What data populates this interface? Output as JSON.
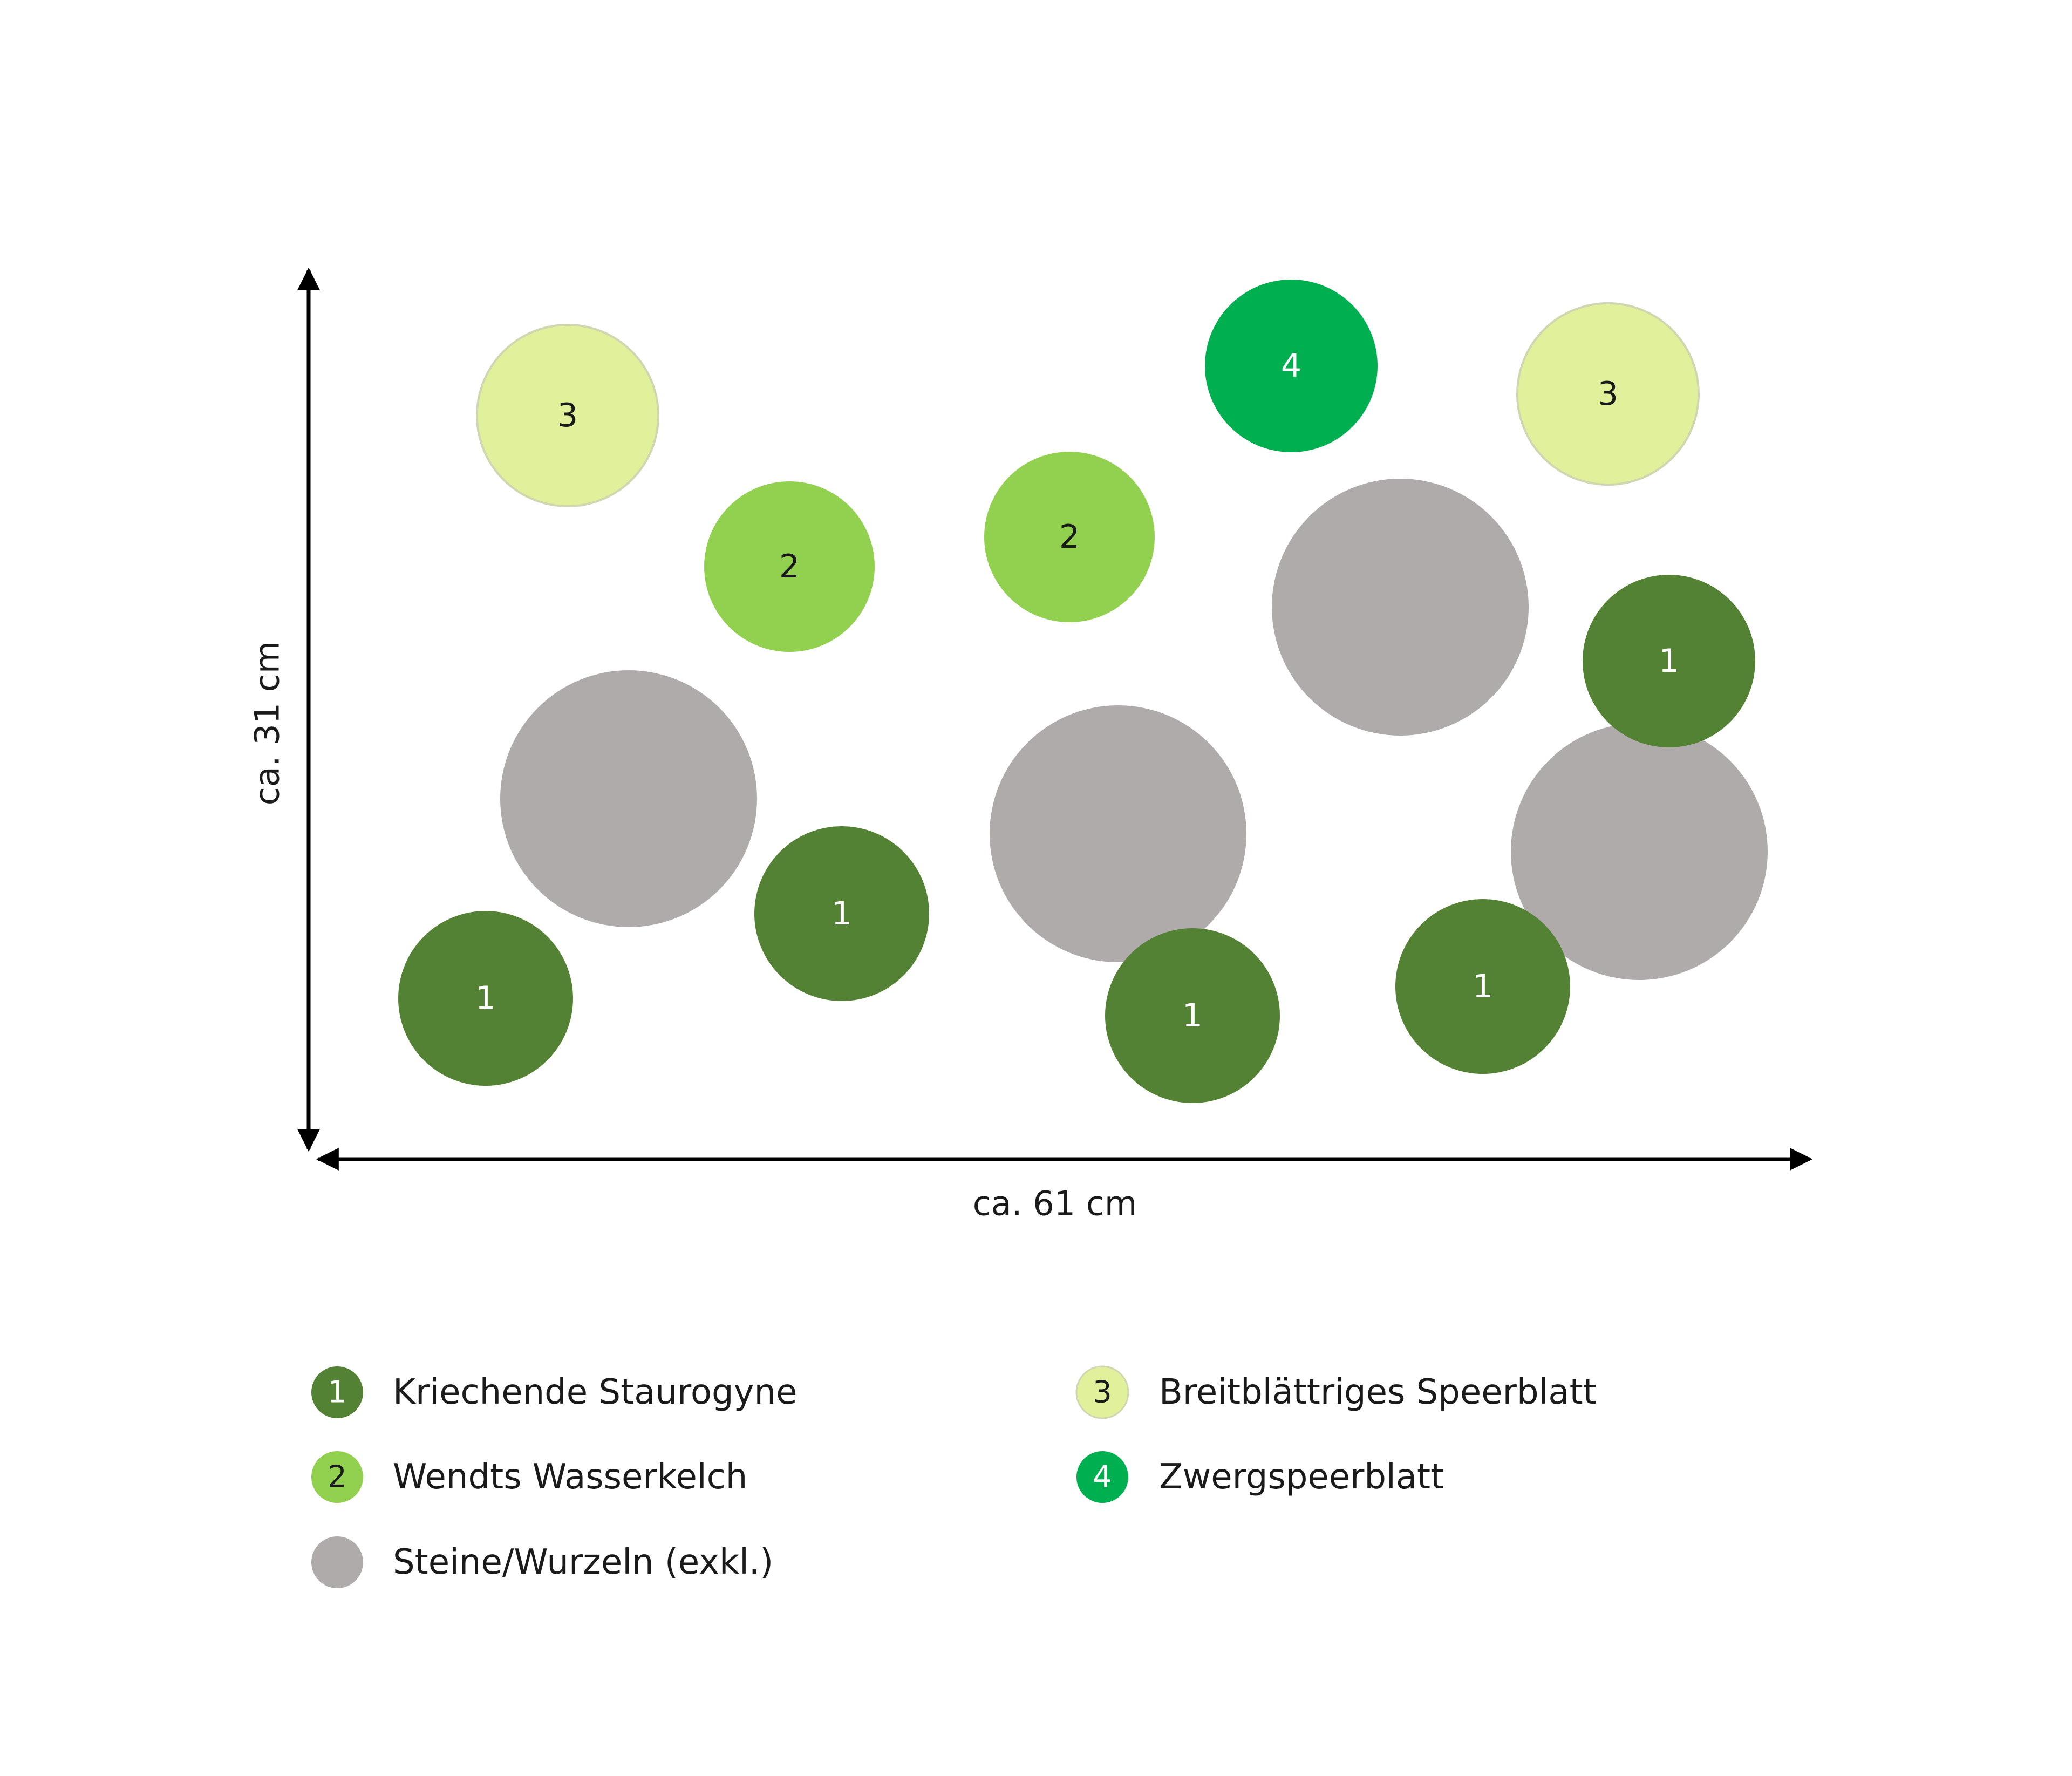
{
  "dimensions": {
    "width_label": "ca. 61 cm",
    "height_label": "ca. 31 cm"
  },
  "colors": {
    "1": "#548235",
    "2": "#92d050",
    "3": "#e1f19b",
    "4": "#00b050",
    "stone": "#afabab"
  },
  "label_colors": {
    "1": "#ffffff",
    "2": "#1a1a1a",
    "3": "#1a1a1a",
    "4": "#ffffff"
  },
  "legend": [
    {
      "key": "1",
      "label": "Kriechende Staurogyne",
      "number": "1"
    },
    {
      "key": "2",
      "label": "Wendts Wasserkelch",
      "number": "2"
    },
    {
      "key": "stone",
      "label": "Steine/Wurzeln (exkl.)",
      "number": ""
    },
    {
      "key": "3",
      "label": "Breitblättriges Speerblatt",
      "number": "3"
    },
    {
      "key": "4",
      "label": "Zwergspeerblatt",
      "number": "4"
    }
  ]
}
